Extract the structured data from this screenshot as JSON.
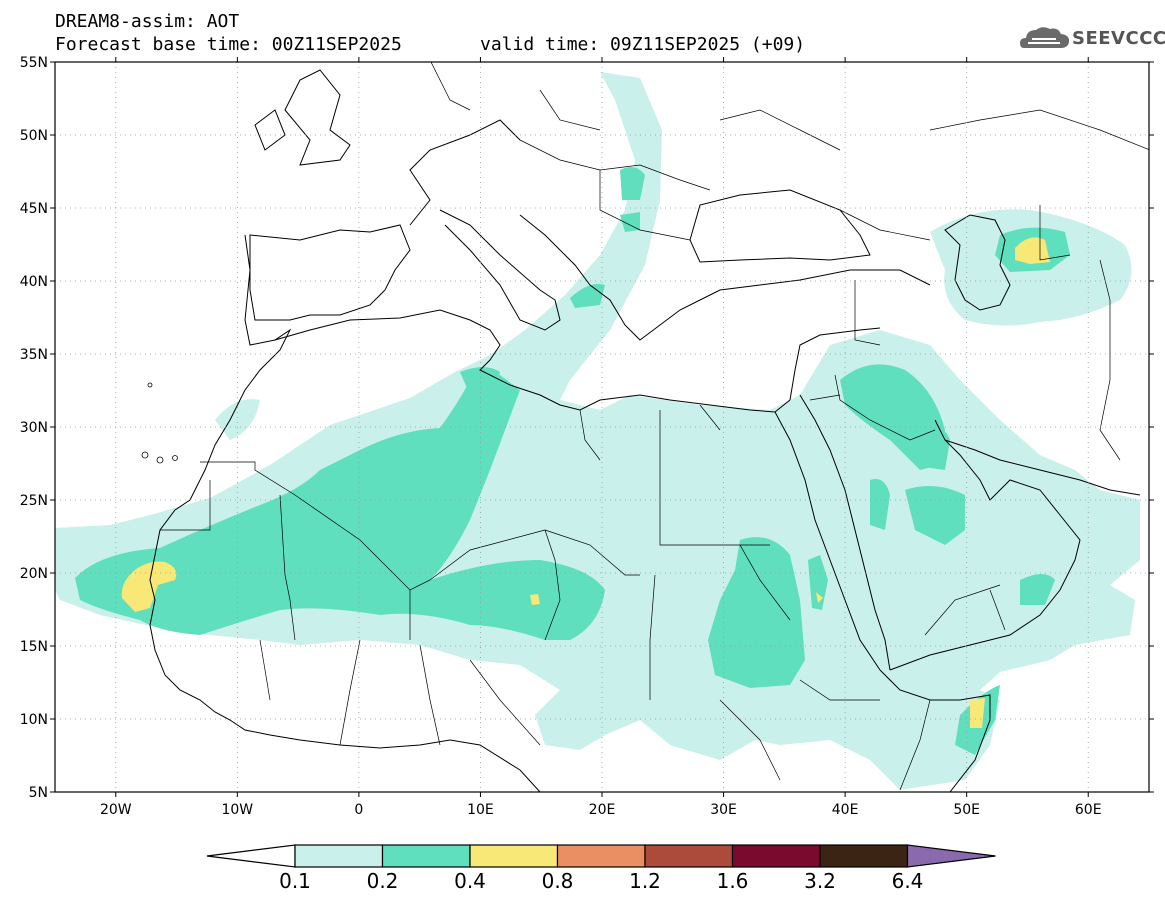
{
  "header": {
    "line1": "DREAM8-assim: AOT",
    "base_time": "Forecast base time: 00Z11SEP2025",
    "valid_time": "valid time: 09Z11SEP2025 (+09)"
  },
  "logo": {
    "text": "SEEVCCC",
    "icon": "cloud-logo-icon"
  },
  "map": {
    "lon_range": [
      -25,
      65
    ],
    "lat_range": [
      5,
      55
    ],
    "lat_labels": [
      "55N",
      "50N",
      "45N",
      "40N",
      "35N",
      "30N",
      "25N",
      "20N",
      "15N",
      "10N",
      "5N"
    ],
    "lat_values": [
      55,
      50,
      45,
      40,
      35,
      30,
      25,
      20,
      15,
      10,
      5
    ],
    "lon_labels": [
      "20W",
      "10W",
      "0",
      "10E",
      "20E",
      "30E",
      "40E",
      "50E",
      "60E"
    ],
    "lon_values": [
      -20,
      -10,
      0,
      10,
      20,
      30,
      40,
      50,
      60
    ]
  },
  "legend": {
    "colors": [
      "#ffffff",
      "#c9f0ea",
      "#5fdfbd",
      "#f7e877",
      "#ea8f64",
      "#ac4b3c",
      "#7a0b2e",
      "#3b2414",
      "#8a6aac"
    ],
    "levels": [
      "0.1",
      "0.2",
      "0.4",
      "0.8",
      "1.2",
      "1.6",
      "3.2",
      "6.4"
    ]
  }
}
